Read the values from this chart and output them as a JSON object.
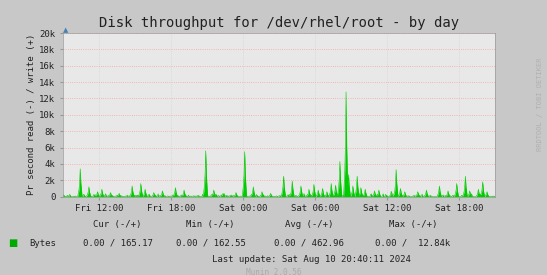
{
  "title": "Disk throughput for /dev/rhel/root - by day",
  "ylabel": "Pr second read (-) / write (+)",
  "xlabel_ticks": [
    "Fri 12:00",
    "Fri 18:00",
    "Sat 00:00",
    "Sat 06:00",
    "Sat 12:00",
    "Sat 18:00"
  ],
  "yticks": [
    0,
    2000,
    4000,
    6000,
    8000,
    10000,
    12000,
    14000,
    16000,
    18000,
    20000
  ],
  "ytick_labels": [
    "0",
    "2k",
    "4k",
    "6k",
    "8k",
    "10k",
    "12k",
    "14k",
    "16k",
    "18k",
    "20k"
  ],
  "ylim": [
    0,
    20000
  ],
  "bg_color": "#c8c8c8",
  "plot_bg_color": "#e8e8e8",
  "grid_color_h": "#ff9999",
  "grid_color_v": "#cccccc",
  "line_color": "#00cc00",
  "fill_color": "#00cc00",
  "rrdtool_text": "RRDTOOL / TOBI OETIKER",
  "legend_label": "Bytes",
  "legend_color": "#00aa00",
  "footer_cur": "Cur (-/+)",
  "footer_min": "Min (-/+)",
  "footer_avg": "Avg (-/+)",
  "footer_max": "Max (-/+)",
  "footer_cur_val": "0.00 / 165.17",
  "footer_min_val": "0.00 / 162.55",
  "footer_avg_val": "0.00 / 462.96",
  "footer_max_val": "0.00 /  12.84k",
  "footer_lastupdate": "Last update: Sat Aug 10 20:40:11 2024",
  "munin_text": "Munin 2.0.56",
  "n_points": 700
}
